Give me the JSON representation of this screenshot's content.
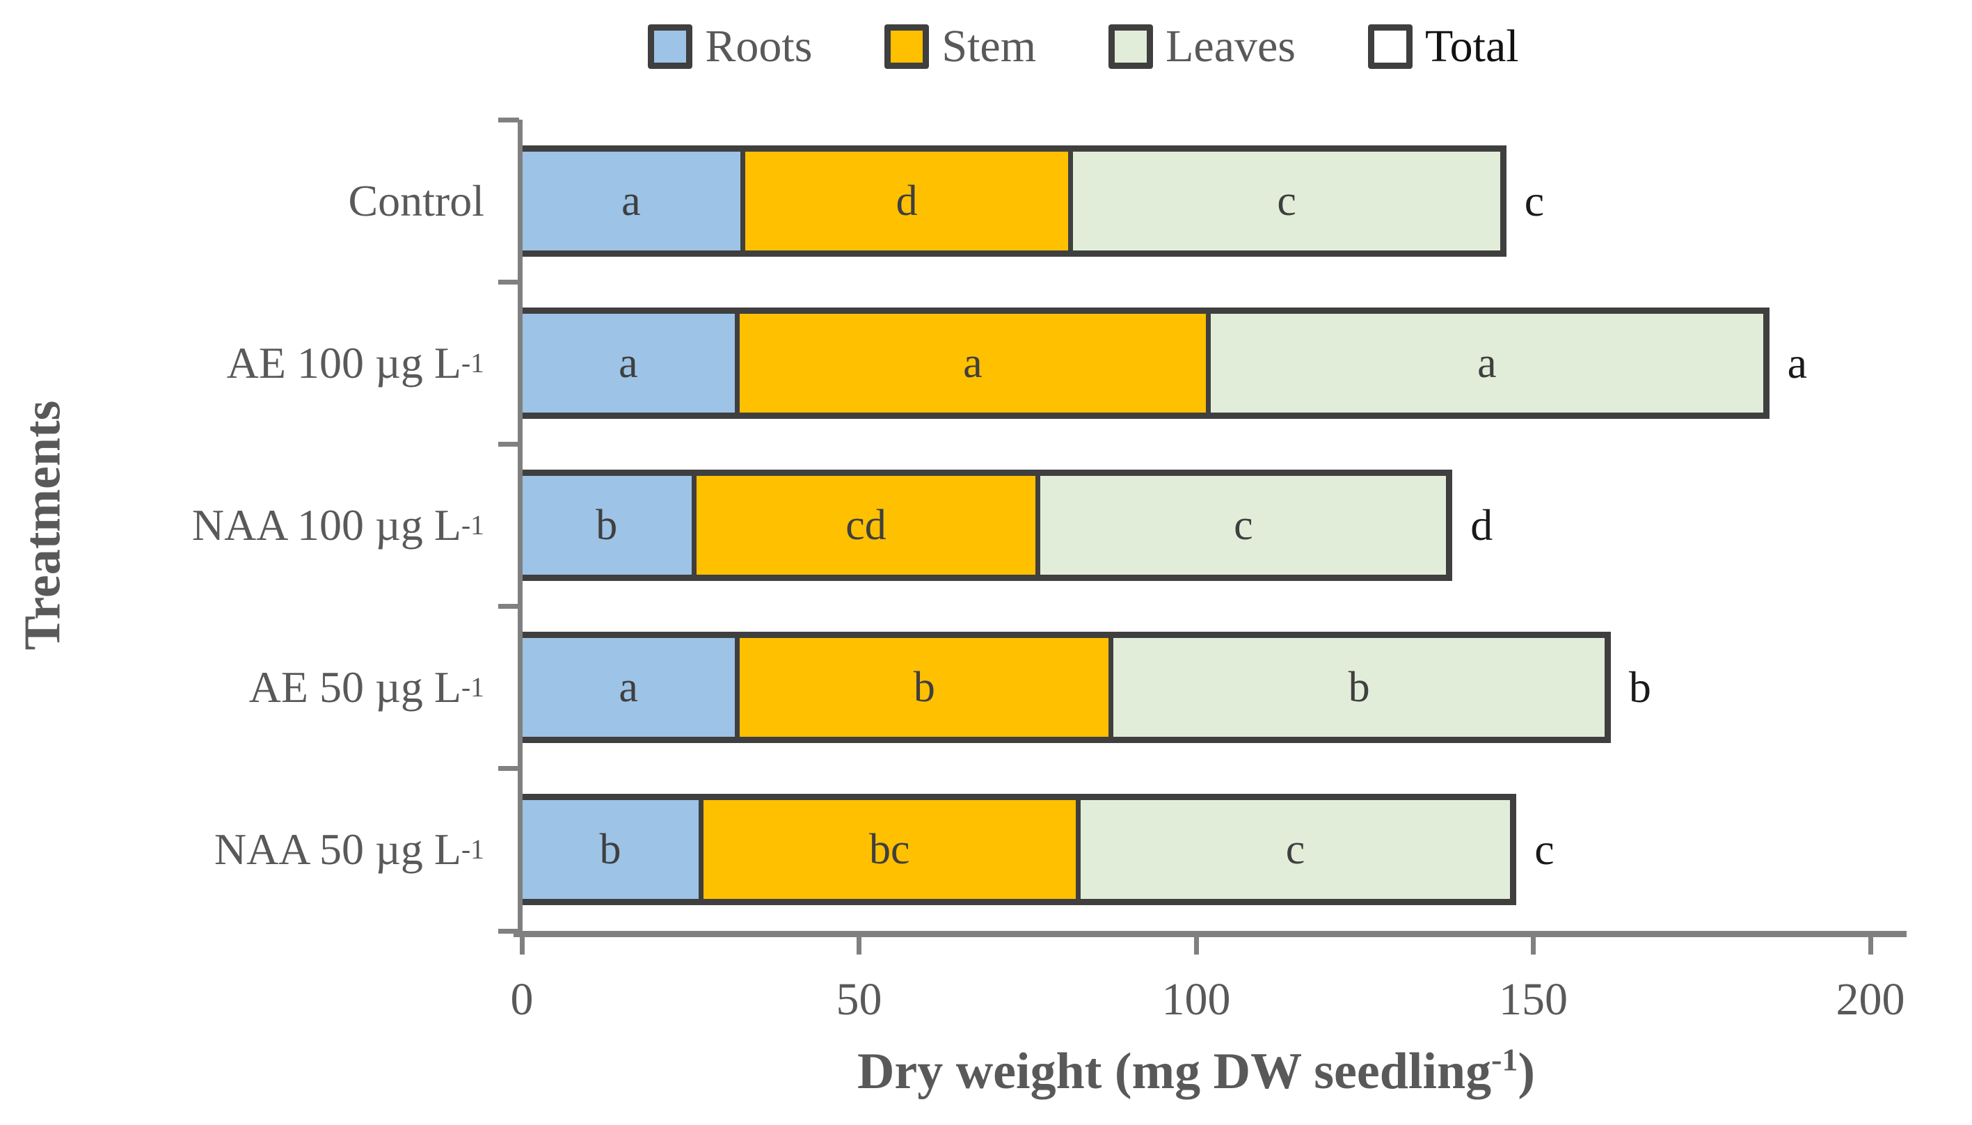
{
  "chart_data": {
    "type": "bar",
    "orientation": "horizontal",
    "stacked": true,
    "title": "",
    "xlabel_parts": {
      "pre": "Dry weight (mg DW seedling",
      "sup": "-1",
      "post": ")"
    },
    "ylabel": "Treatments",
    "xlim": [
      0,
      200
    ],
    "x_ticks": [
      "0",
      "50",
      "100",
      "150",
      "200"
    ],
    "legend_position": "top",
    "grid": false,
    "categories": [
      {
        "base": "Control",
        "sup": ""
      },
      {
        "base": "AE 100 µg L",
        "sup": "-1"
      },
      {
        "base": "NAA 100 µg L",
        "sup": "-1"
      },
      {
        "base": "AE 50 µg L",
        "sup": "-1"
      },
      {
        "base": "NAA 50 µg L",
        "sup": "-1"
      }
    ],
    "series": [
      {
        "name": "Roots",
        "color": "#9DC3E6",
        "values": [
          32,
          30.5,
          24.5,
          31,
          25.5
        ],
        "sig_letters": [
          "a",
          "a",
          "b",
          "a",
          "b"
        ]
      },
      {
        "name": "Stem",
        "color": "#FFC000",
        "values": [
          48.5,
          70.5,
          49.5,
          55.5,
          54.5
        ],
        "sig_letters": [
          "d",
          "a",
          "cd",
          "b",
          "bc"
        ]
      },
      {
        "name": "Leaves",
        "color": "#E2EDD9",
        "values": [
          65.5,
          84,
          64,
          75,
          67.5
        ],
        "sig_letters": [
          "c",
          "a",
          "c",
          "b",
          "c"
        ]
      }
    ],
    "totals": {
      "name": "Total",
      "color": "#FFFFFF",
      "values": [
        146,
        185,
        138,
        161.5,
        147.5
      ],
      "sig_letters": [
        "c",
        "a",
        "d",
        "b",
        "c"
      ]
    },
    "styles": {
      "outline_color": "#3F3F3F",
      "axis_color": "#808080",
      "text_color": "#595959",
      "letter_color": "#3F3F3F",
      "total_letter_color": "#1a1a1a"
    }
  }
}
